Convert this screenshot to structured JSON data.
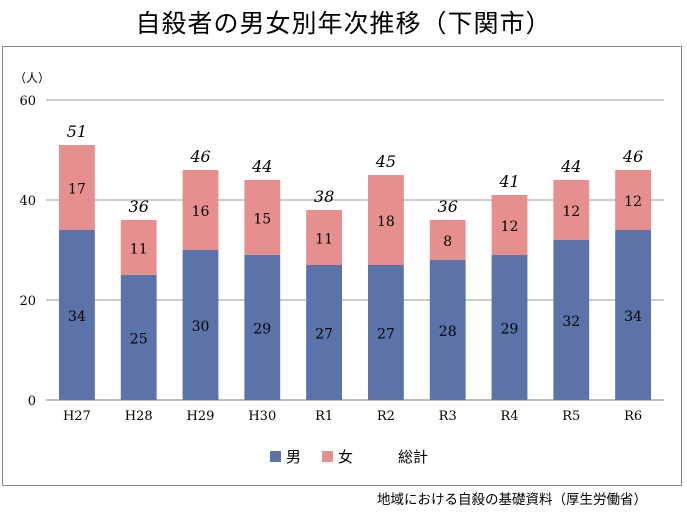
{
  "chart_data": {
    "type": "bar",
    "stacked": true,
    "title": "自殺者の男女別年次推移（下関市）",
    "ylabel": "（人）",
    "ylim": [
      0,
      60
    ],
    "yticks": [
      0,
      20,
      40,
      60
    ],
    "grid": true,
    "legend_position": "bottom",
    "categories": [
      "H27",
      "H28",
      "H29",
      "H30",
      "R1",
      "R2",
      "R3",
      "R4",
      "R5",
      "R6"
    ],
    "series": [
      {
        "name": "男",
        "color": "#5b73a8",
        "values": [
          34,
          25,
          30,
          29,
          27,
          27,
          28,
          29,
          32,
          34
        ]
      },
      {
        "name": "女",
        "color": "#e58f8e",
        "values": [
          17,
          11,
          16,
          15,
          11,
          18,
          8,
          12,
          12,
          12
        ]
      }
    ],
    "totals_label": "総計",
    "totals": [
      51,
      36,
      46,
      44,
      38,
      45,
      36,
      41,
      44,
      46
    ]
  },
  "source": "地域における自殺の基礎資料（厚生労働省）"
}
